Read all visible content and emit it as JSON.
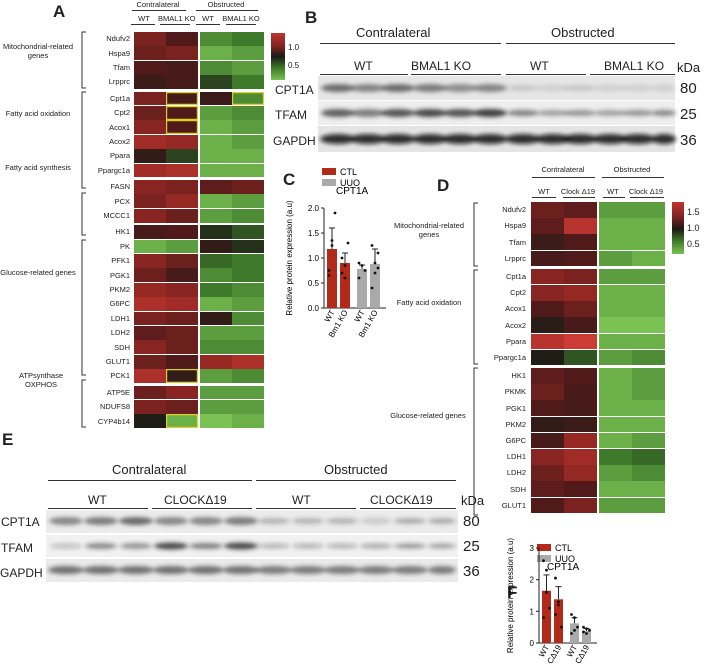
{
  "panels": {
    "A": "A",
    "B": "B",
    "C": "C",
    "D": "D",
    "E": "E",
    "F": "F"
  },
  "panelA": {
    "header_left": "Contralateral",
    "header_right": "Obstructed",
    "cols": [
      "WT",
      "BMAL1 KO",
      "WT",
      "BMAL1 KO"
    ],
    "scale_hi": "1.0",
    "scale_lo": "0.5",
    "genes": [
      "Ndufv2",
      "Hspa9",
      "Tfam",
      "Lrpprc",
      "Cpt1a",
      "Cpt2",
      "Acox1",
      "Acox2",
      "Ppara",
      "Ppargc1a",
      "FASN",
      "PCX",
      "MCCC1",
      "HK1",
      "PK",
      "PFK1",
      "PGK1",
      "PKM2",
      "G6PC",
      "LDH1",
      "LDH2",
      "SDH",
      "GLUT1",
      "PCK1",
      "ATP5E",
      "NDUFS8",
      "CYP4b14"
    ],
    "groups": [
      "Mitochondrial-related genes",
      "Fatty acid oxidation",
      "Fatty acid synthesis",
      "Glucose-related genes",
      "ATPsynthase OXPHOS"
    ],
    "values": [
      [
        1.25,
        1.1,
        0.55,
        0.6
      ],
      [
        1.2,
        1.25,
        0.45,
        0.5
      ],
      [
        1.1,
        1.05,
        0.55,
        0.5
      ],
      [
        1.0,
        1.05,
        0.75,
        0.6
      ],
      [
        1.25,
        1.05,
        1.0,
        0.55
      ],
      [
        1.2,
        1.1,
        0.5,
        0.55
      ],
      [
        1.3,
        1.1,
        0.45,
        0.5
      ],
      [
        1.4,
        1.35,
        0.45,
        0.5
      ],
      [
        0.95,
        0.75,
        0.45,
        0.45
      ],
      [
        1.4,
        1.45,
        0.45,
        0.45
      ],
      [
        1.3,
        1.25,
        1.15,
        1.2
      ],
      [
        1.25,
        1.35,
        0.45,
        0.5
      ],
      [
        1.3,
        1.2,
        0.5,
        0.55
      ],
      [
        1.05,
        1.1,
        0.8,
        0.7
      ],
      [
        0.45,
        0.5,
        0.95,
        0.8
      ],
      [
        1.3,
        1.2,
        0.65,
        0.6
      ],
      [
        1.2,
        1.05,
        0.55,
        0.6
      ],
      [
        1.35,
        1.3,
        0.6,
        0.55
      ],
      [
        1.45,
        1.4,
        0.45,
        0.5
      ],
      [
        1.25,
        1.2,
        0.95,
        0.55
      ],
      [
        1.15,
        1.2,
        0.5,
        0.5
      ],
      [
        1.3,
        1.2,
        0.55,
        0.55
      ],
      [
        1.2,
        1.1,
        1.35,
        1.45
      ],
      [
        1.45,
        0.95,
        0.5,
        0.55
      ],
      [
        1.2,
        1.3,
        0.5,
        0.5
      ],
      [
        1.25,
        1.2,
        0.5,
        0.5
      ],
      [
        0.85,
        0.45,
        0.4,
        0.45
      ]
    ]
  },
  "panelB": {
    "header_left": "Contralateral",
    "header_right": "Obstructed",
    "sub": [
      "WT",
      "BMAL1 KO",
      "WT",
      "BMAL1 KO"
    ],
    "rows": [
      "CPT1A",
      "TFAM",
      "GAPDH"
    ],
    "kda": "kDa",
    "sizes": [
      "80",
      "25",
      "36"
    ]
  },
  "panelC": {
    "title": "CPT1A",
    "ylabel": "Relative protein expression (a.u)",
    "legend": [
      {
        "name": "CTL",
        "color": "#b22a1a"
      },
      {
        "name": "UUO",
        "color": "#aaaaaa"
      }
    ],
    "chart_data": {
      "type": "bar",
      "categories": [
        "WT",
        "Bm1 KO",
        "WT",
        "Bm1 KO"
      ],
      "values": [
        1.18,
        0.9,
        0.78,
        0.88
      ],
      "errors": [
        0.42,
        0.2,
        0.08,
        0.3
      ],
      "ylim": [
        0,
        2
      ],
      "yticks": [
        "0.0",
        "0.5",
        "1.0",
        "1.5",
        "2.0"
      ],
      "groups": [
        "CTL",
        "CTL",
        "UUO",
        "UUO"
      ],
      "points": [
        [
          0.65,
          1.35,
          1.9,
          0.75,
          1.25
        ],
        [
          0.7,
          0.85,
          1.3,
          1.0,
          0.6
        ],
        [
          0.6,
          0.85,
          0.75,
          0.9
        ],
        [
          0.4,
          0.7,
          1.1,
          1.25,
          0.9,
          0.8
        ]
      ]
    }
  },
  "panelD": {
    "header_left": "Contralateral",
    "header_right": "Obstructed",
    "cols": [
      "WT",
      "Clock Δ19",
      "WT",
      "Clock Δ19"
    ],
    "scale": [
      "1.5",
      "1.0",
      "0.5"
    ],
    "genes": [
      "Ndufv2",
      "Hspa9",
      "Tfam",
      "Lrpprc",
      "Cpt1a",
      "Cpt2",
      "Acox1",
      "Acox2",
      "Ppara",
      "Ppargc1a",
      "HK1",
      "PKMK",
      "PGK1",
      "PKM2",
      "G6PC",
      "LDH1",
      "LDH2",
      "SDH",
      "GLUT1"
    ],
    "groups": [
      "Mitochondrial-related genes",
      "Fatty acid oxidation",
      "Glucose-related genes"
    ],
    "values": [
      [
        1.2,
        1.15,
        0.5,
        0.5
      ],
      [
        1.15,
        1.5,
        0.45,
        0.45
      ],
      [
        1.0,
        1.1,
        0.45,
        0.45
      ],
      [
        1.05,
        1.1,
        0.5,
        0.45
      ],
      [
        1.3,
        1.25,
        0.5,
        0.5
      ],
      [
        1.3,
        1.35,
        0.45,
        0.45
      ],
      [
        1.1,
        1.2,
        0.45,
        0.45
      ],
      [
        0.9,
        1.05,
        0.4,
        0.4
      ],
      [
        1.5,
        1.6,
        0.45,
        0.45
      ],
      [
        0.85,
        0.7,
        0.5,
        0.55
      ],
      [
        1.15,
        1.1,
        0.45,
        0.5
      ],
      [
        1.2,
        1.05,
        0.45,
        0.5
      ],
      [
        1.1,
        1.05,
        0.45,
        0.45
      ],
      [
        0.95,
        1.0,
        0.45,
        0.45
      ],
      [
        1.05,
        1.35,
        0.45,
        0.5
      ],
      [
        1.3,
        1.4,
        0.6,
        0.65
      ],
      [
        1.2,
        1.35,
        0.5,
        0.55
      ],
      [
        1.15,
        1.1,
        0.45,
        0.45
      ],
      [
        1.1,
        1.25,
        0.5,
        0.5
      ]
    ]
  },
  "panelE": {
    "header_left": "Contralateral",
    "header_right": "Obstructed",
    "sub": [
      "WT",
      "CLOCKΔ19",
      "WT",
      "CLOCKΔ19"
    ],
    "rows": [
      "CPT1A",
      "TFAM",
      "GAPDH"
    ],
    "kda": "kDa",
    "sizes": [
      "80",
      "25",
      "36"
    ]
  },
  "panelF": {
    "title": "CPT1A",
    "ylabel": "Relative protein expression (a.u)",
    "legend": [
      {
        "name": "CTL",
        "color": "#b22a1a"
      },
      {
        "name": "UUO",
        "color": "#aaaaaa"
      }
    ],
    "chart_data": {
      "type": "bar",
      "categories": [
        "WT",
        "CΔ19",
        "WT",
        "CΔ19"
      ],
      "values": [
        1.65,
        1.38,
        0.62,
        0.38
      ],
      "errors": [
        0.5,
        0.4,
        0.18,
        0.08
      ],
      "ylim": [
        0,
        3
      ],
      "yticks": [
        "0",
        "1",
        "2",
        "3"
      ],
      "groups": [
        "CTL",
        "CTL",
        "UUO",
        "UUO"
      ],
      "points": [
        [
          2.6,
          2.3,
          1.1,
          0.8,
          1.6
        ],
        [
          2.05,
          1.2,
          0.5,
          0.9,
          1.3
        ],
        [
          0.9,
          0.8,
          0.5,
          0.3,
          0.4
        ],
        [
          0.5,
          0.3,
          0.4,
          0.35,
          0.45
        ]
      ]
    }
  }
}
